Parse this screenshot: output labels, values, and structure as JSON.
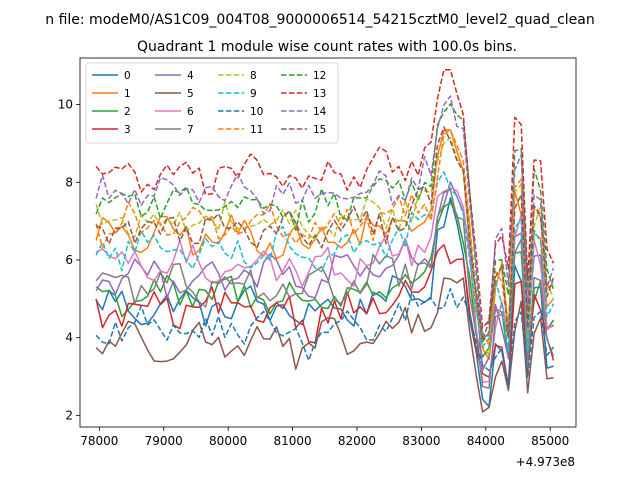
{
  "header_title": "n file: modeM0/AS1C09_004T08_9000006514_54215cztM0_level2_quad_clean",
  "chart_data": {
    "type": "line",
    "title": "Quadrant 1 module wise count rates with 100.0s bins.",
    "xlabel": "",
    "ylabel": "",
    "x_offset_label": "+4.973e8",
    "xlim": [
      77700,
      85400
    ],
    "ylim": [
      1.7,
      11.2
    ],
    "xticks": [
      78000,
      79000,
      80000,
      81000,
      82000,
      83000,
      84000,
      85000
    ],
    "xtick_labels": [
      "78000",
      "79000",
      "80000",
      "81000",
      "82000",
      "83000",
      "84000",
      "85000"
    ],
    "yticks": [
      2,
      4,
      6,
      8,
      10
    ],
    "ytick_labels": [
      "2",
      "4",
      "6",
      "8",
      "10"
    ],
    "grid": false,
    "legend_position": "top-left",
    "legend_columns": 4,
    "x_start": 77950,
    "x_step": 100,
    "series": [
      {
        "name": "0",
        "color": "#1f77b4",
        "dash": "solid",
        "base": 4.8,
        "amp_peak": 2.2,
        "amp_dip": 2.3
      },
      {
        "name": "1",
        "color": "#ff7f0e",
        "dash": "solid",
        "base": 6.6,
        "amp_peak": 2.5,
        "amp_dip": 3.0
      },
      {
        "name": "2",
        "color": "#2ca02c",
        "dash": "solid",
        "base": 5.1,
        "amp_peak": 2.6,
        "amp_dip": 2.0
      },
      {
        "name": "3",
        "color": "#d62728",
        "dash": "solid",
        "base": 4.7,
        "amp_peak": 1.8,
        "amp_dip": 2.3
      },
      {
        "name": "4",
        "color": "#9467bd",
        "dash": "solid",
        "base": 5.6,
        "amp_peak": 2.4,
        "amp_dip": 2.4
      },
      {
        "name": "5",
        "color": "#8c564b",
        "dash": "solid",
        "base": 3.9,
        "amp_peak": 1.6,
        "amp_dip": 1.6
      },
      {
        "name": "6",
        "color": "#e377c2",
        "dash": "solid",
        "base": 5.9,
        "amp_peak": 2.0,
        "amp_dip": 2.8
      },
      {
        "name": "7",
        "color": "#7f7f7f",
        "dash": "solid",
        "base": 5.4,
        "amp_peak": 2.0,
        "amp_dip": 2.5
      },
      {
        "name": "8",
        "color": "#bcbd22",
        "dash": "dashed",
        "base": 7.0,
        "amp_peak": 2.2,
        "amp_dip": 3.4
      },
      {
        "name": "9",
        "color": "#17becf",
        "dash": "dashed",
        "base": 6.3,
        "amp_peak": 2.0,
        "amp_dip": 3.0
      },
      {
        "name": "10",
        "color": "#1f77b4",
        "dash": "dashed",
        "base": 4.2,
        "amp_peak": 1.0,
        "amp_dip": 1.4
      },
      {
        "name": "11",
        "color": "#ff7f0e",
        "dash": "dashed",
        "base": 6.9,
        "amp_peak": 2.4,
        "amp_dip": 3.2
      },
      {
        "name": "12",
        "color": "#2ca02c",
        "dash": "dashed",
        "base": 7.5,
        "amp_peak": 2.5,
        "amp_dip": 3.2
      },
      {
        "name": "13",
        "color": "#d62728",
        "dash": "dashed",
        "base": 8.2,
        "amp_peak": 2.5,
        "amp_dip": 3.6
      },
      {
        "name": "14",
        "color": "#9467bd",
        "dash": "dashed",
        "base": 7.7,
        "amp_peak": 2.4,
        "amp_dip": 3.6
      },
      {
        "name": "15",
        "color": "#8c564b",
        "dash": "dashed",
        "base": 6.8,
        "amp_peak": 2.6,
        "amp_dip": 3.1
      }
    ]
  }
}
